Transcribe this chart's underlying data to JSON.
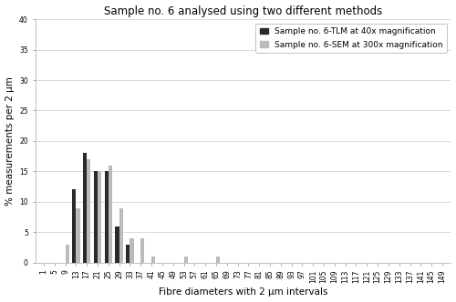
{
  "title": "Sample no. 6 analysed using two different methods",
  "xlabel": "Fibre diameters with 2 μm intervals",
  "ylabel": "% measurements per 2 μm",
  "categories": [
    "1",
    "5",
    "9",
    "13",
    "17",
    "21",
    "25",
    "29",
    "33",
    "37",
    "41",
    "45",
    "49",
    "53",
    "57",
    "61",
    "65",
    "69",
    "73",
    "77",
    "81",
    "85",
    "89",
    "93",
    "97",
    "101",
    "105",
    "109",
    "113",
    "117",
    "121",
    "125",
    "129",
    "133",
    "137",
    "141",
    "145",
    "149"
  ],
  "tlm_values": [
    0,
    0,
    0,
    12,
    18,
    15,
    15,
    6,
    3,
    0,
    0,
    0,
    0,
    0,
    0,
    0,
    0,
    0,
    0,
    0,
    0,
    0,
    0,
    0,
    0,
    0,
    0,
    0,
    0,
    0,
    0,
    0,
    0,
    0,
    0,
    0,
    0,
    0
  ],
  "sem_values": [
    0,
    0,
    3,
    9,
    17,
    15,
    16,
    9,
    4,
    4,
    1,
    0,
    0,
    1,
    0,
    0,
    1,
    0,
    0,
    0,
    0,
    0,
    0,
    0,
    0,
    0,
    0,
    0,
    0,
    0,
    0,
    0,
    0,
    0,
    0,
    0,
    0,
    0
  ],
  "tlm_color": "#2a2a2a",
  "sem_color": "#bbbbbb",
  "ylim": [
    0,
    40
  ],
  "yticks": [
    0,
    5,
    10,
    15,
    20,
    25,
    30,
    35,
    40
  ],
  "legend_tlm": "Sample no. 6-TLM at 40x magnification",
  "legend_sem": "Sample no. 6-SEM at 300x magnification",
  "bar_width": 0.35,
  "title_fontsize": 8.5,
  "axis_fontsize": 7.5,
  "tick_fontsize": 5.5,
  "legend_fontsize": 6.5
}
